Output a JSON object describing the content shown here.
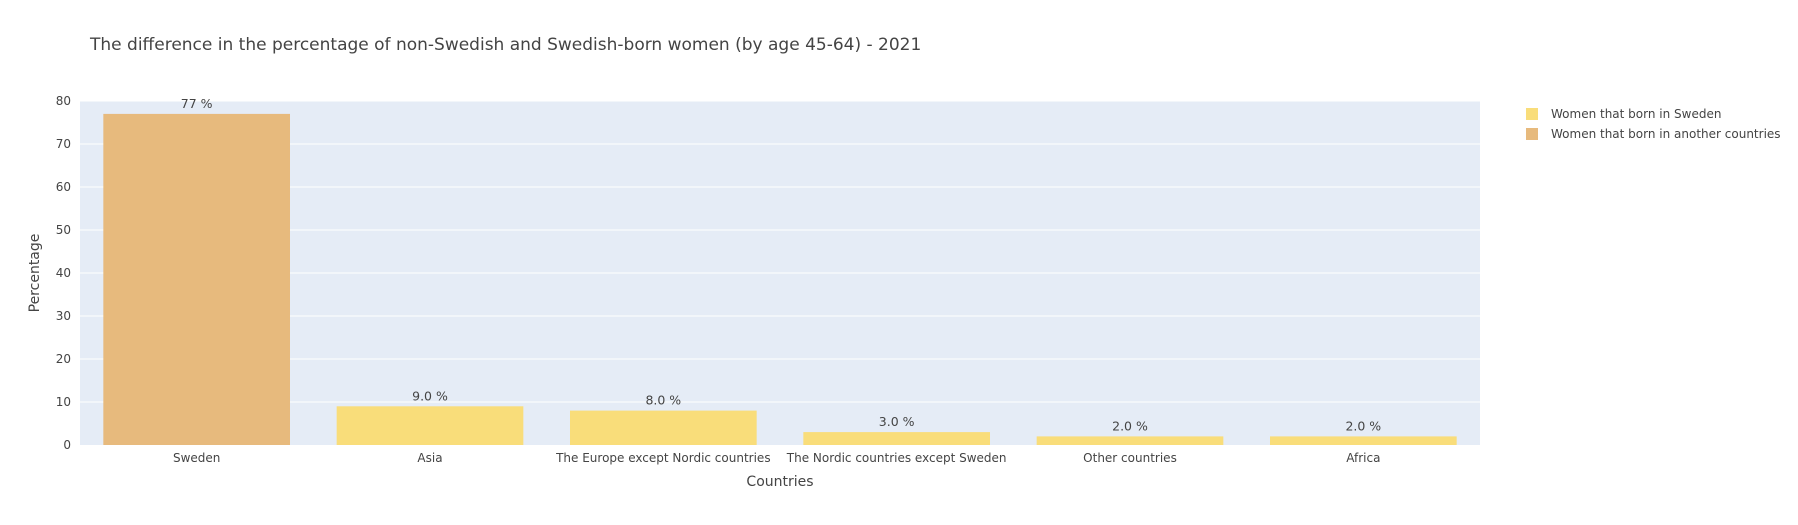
{
  "chart_data": {
    "type": "bar",
    "title": "The difference in the percentage of non-Swedish and Swedish-born women (by age 45-64) - 2021",
    "xlabel": "Countries",
    "ylabel": "Percentage",
    "ylim": [
      0,
      80
    ],
    "yticks": [
      0,
      10,
      20,
      30,
      40,
      50,
      60,
      70,
      80
    ],
    "categories": [
      "Sweden",
      "Asia",
      "The Europe except Nordic countries",
      "The Nordic countries except Sweden",
      "Other countries",
      "Africa"
    ],
    "values": [
      77,
      9.0,
      8.0,
      3.0,
      2.0,
      2.0
    ],
    "bar_labels": [
      "77 %",
      "9.0 %",
      "8.0 %",
      "3.0 %",
      "2.0 %",
      "2.0 %"
    ],
    "bar_series": [
      1,
      0,
      0,
      0,
      0,
      0
    ],
    "grid": true,
    "legend_position": "top-right",
    "series": [
      {
        "name": "Women that born in Sweden",
        "color": "#f9dd7a"
      },
      {
        "name": "Women that born in another countries",
        "color": "#e7ba7d"
      }
    ],
    "plot_background": "#e5ecf6"
  }
}
